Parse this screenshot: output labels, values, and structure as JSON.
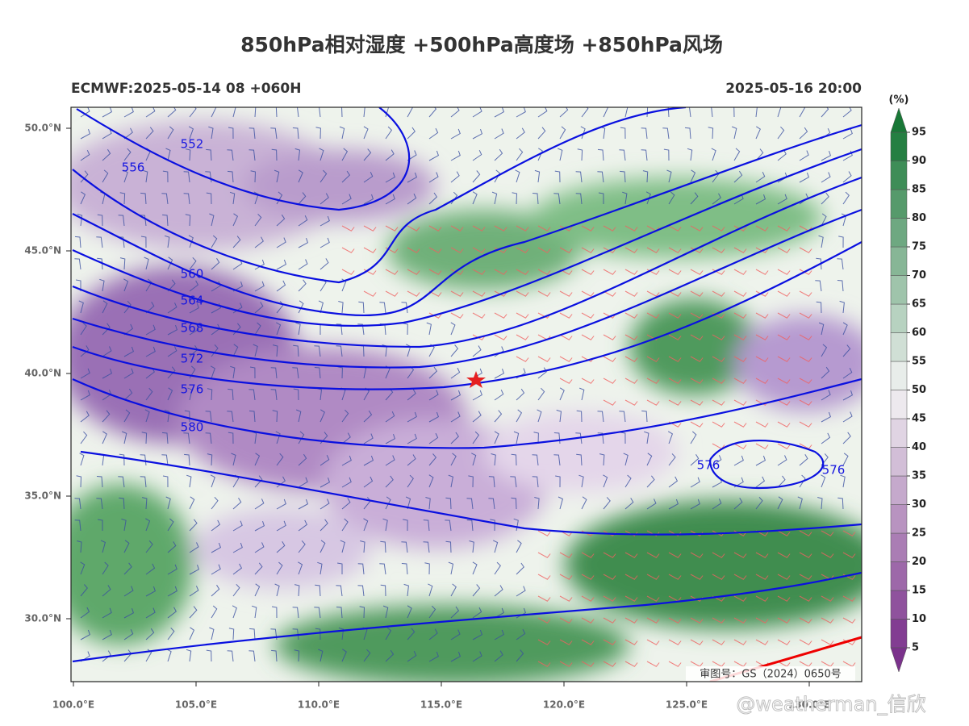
{
  "title": "850hPa相对湿度 +500hPa高度场 +850hPa风场",
  "subtitle_left": "ECMWF:2025-05-14 08 +060H",
  "subtitle_right": "2025-05-16 20:00",
  "map": {
    "lon_ticks": [
      {
        "value": 100,
        "label": "100.0°E"
      },
      {
        "value": 105,
        "label": "105.0°E"
      },
      {
        "value": 110,
        "label": "110.0°E"
      },
      {
        "value": 115,
        "label": "115.0°E"
      },
      {
        "value": 120,
        "label": "120.0°E"
      },
      {
        "value": 125,
        "label": "125.0°E"
      },
      {
        "value": 130,
        "label": "130.0°E"
      }
    ],
    "lat_ticks": [
      {
        "value": 50,
        "label": "50.0°N"
      },
      {
        "value": 45,
        "label": "45.0°N"
      },
      {
        "value": 40,
        "label": "40.0°N"
      },
      {
        "value": 35,
        "label": "35.0°N"
      },
      {
        "value": 30,
        "label": "30.0°N"
      }
    ],
    "contour_labels": [
      "552",
      "556",
      "560",
      "564",
      "568",
      "572",
      "576",
      "580",
      "576",
      "576"
    ]
  },
  "colorbar": {
    "unit": "(%)",
    "levels": [
      5,
      10,
      15,
      20,
      25,
      30,
      35,
      40,
      45,
      50,
      55,
      60,
      65,
      70,
      75,
      80,
      85,
      90,
      95
    ]
  },
  "review_number": "审图号：GS（2024）0650号",
  "watermark": "@weatherman_信欣"
}
